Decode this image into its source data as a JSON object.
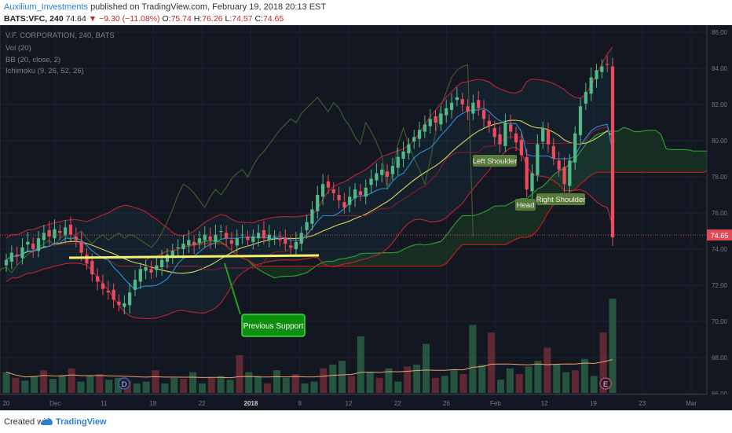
{
  "header": {
    "author": "Auxilium_Investments",
    "published": "published on TradingView.com, February 19, 2018 20:13 EST",
    "symbol": "BATS:VFC, 240",
    "last": "74.64",
    "change": "−9.30 (−11.08%)",
    "o_label": "O:",
    "o_value": "75.74",
    "h_label": "H:",
    "h_value": "76.26",
    "l_label": "L:",
    "l_value": "74.57",
    "c_label": "C:",
    "c_value": "74.65"
  },
  "legend": {
    "title": "V.F. CORPORATION, 240, BATS",
    "vol": "Vol (20)",
    "bb": "BB (20, close, 2)",
    "ichimoku": "Ichimoku (9, 26, 52, 26)"
  },
  "annotations": {
    "left_shoulder": "Left Shoulder",
    "head": "Head",
    "right_shoulder": "Right Shoulder",
    "previous_support": "Previous Support",
    "badge_d": "D",
    "badge_e": "E"
  },
  "price_label": "74.65",
  "footer": {
    "created_with": "Created with",
    "brand": "TradingView"
  },
  "colors": {
    "background": "#131722",
    "bull": "#53b987",
    "bear": "#eb4d5c",
    "bb_band": "#c1232e",
    "bb_mid": "#d9d35a",
    "tenkan": "#2b8fd6",
    "kijun": "#8b1c2a",
    "chikou": "#3f5a2d",
    "span_a": "#2f9a2f",
    "span_b": "#c21a1a",
    "support_line": "#f7f26b",
    "annotation_green": "#1ea41e"
  },
  "chart_data": {
    "type": "candlestick",
    "symbol": "BATS:VFC",
    "timeframe": "240",
    "ylim": [
      66.0,
      86.0
    ],
    "y_ticks": [
      "86.00",
      "84.00",
      "82.00",
      "80.00",
      "78.00",
      "76.00",
      "74.00",
      "72.00",
      "70.00",
      "68.00",
      "66.00"
    ],
    "x_ticks": [
      "20",
      "Dec",
      "11",
      "18",
      "22",
      "2018",
      "8",
      "12",
      "22",
      "26",
      "Feb",
      "12",
      "19",
      "23",
      "Mar"
    ],
    "last_price": 74.65,
    "close_path": [
      73.4,
      73.8,
      73.6,
      74.1,
      74.4,
      74.0,
      74.6,
      74.9,
      74.7,
      75.1,
      74.9,
      75.2,
      74.8,
      74.5,
      73.8,
      73.2,
      72.6,
      72.2,
      71.8,
      71.6,
      71.2,
      70.9,
      71.0,
      71.6,
      72.3,
      72.9,
      73.0,
      72.7,
      73.1,
      73.4,
      73.7,
      73.9,
      74.1,
      74.3,
      74.5,
      74.2,
      74.6,
      74.8,
      74.5,
      74.8,
      75.0,
      74.6,
      74.3,
      74.6,
      74.8,
      74.5,
      74.7,
      74.9,
      74.6,
      74.8,
      74.7,
      74.5,
      74.3,
      74.1,
      74.4,
      74.9,
      75.5,
      76.2,
      77.0,
      77.6,
      77.4,
      77.1,
      76.7,
      76.3,
      76.9,
      77.3,
      77.0,
      77.4,
      77.9,
      78.2,
      78.4,
      78.0,
      78.6,
      79.1,
      79.4,
      79.8,
      80.2,
      80.6,
      80.9,
      81.2,
      81.0,
      81.5,
      81.8,
      82.1,
      82.4,
      82.0,
      81.6,
      82.1,
      81.8,
      81.2,
      80.8,
      80.2,
      79.8,
      81.0,
      80.5,
      79.9,
      79.2,
      77.3,
      78.2,
      79.8,
      80.7,
      79.8,
      79.0,
      78.4,
      77.6,
      78.9,
      80.4,
      81.9,
      82.7,
      83.5,
      83.9,
      84.1,
      84.2,
      74.65
    ],
    "volume_ylim": [
      0,
      100
    ],
    "volume_shape": [
      22,
      16,
      13,
      18,
      24,
      15,
      19,
      26,
      12,
      18,
      20,
      14,
      16,
      13,
      10,
      12,
      24,
      10,
      16,
      15,
      22,
      10,
      16,
      18,
      14,
      40,
      22,
      18,
      10,
      24,
      16,
      20,
      10,
      12,
      26,
      30,
      34,
      18,
      60,
      22,
      16,
      26,
      12,
      28,
      30,
      52,
      16,
      18,
      24,
      20,
      72,
      30,
      64,
      14,
      26,
      20,
      28,
      34,
      48,
      30,
      22,
      24,
      36,
      18,
      64,
      100
    ],
    "annotations": [
      "Left Shoulder",
      "Head",
      "Right Shoulder",
      "Previous Support"
    ]
  }
}
